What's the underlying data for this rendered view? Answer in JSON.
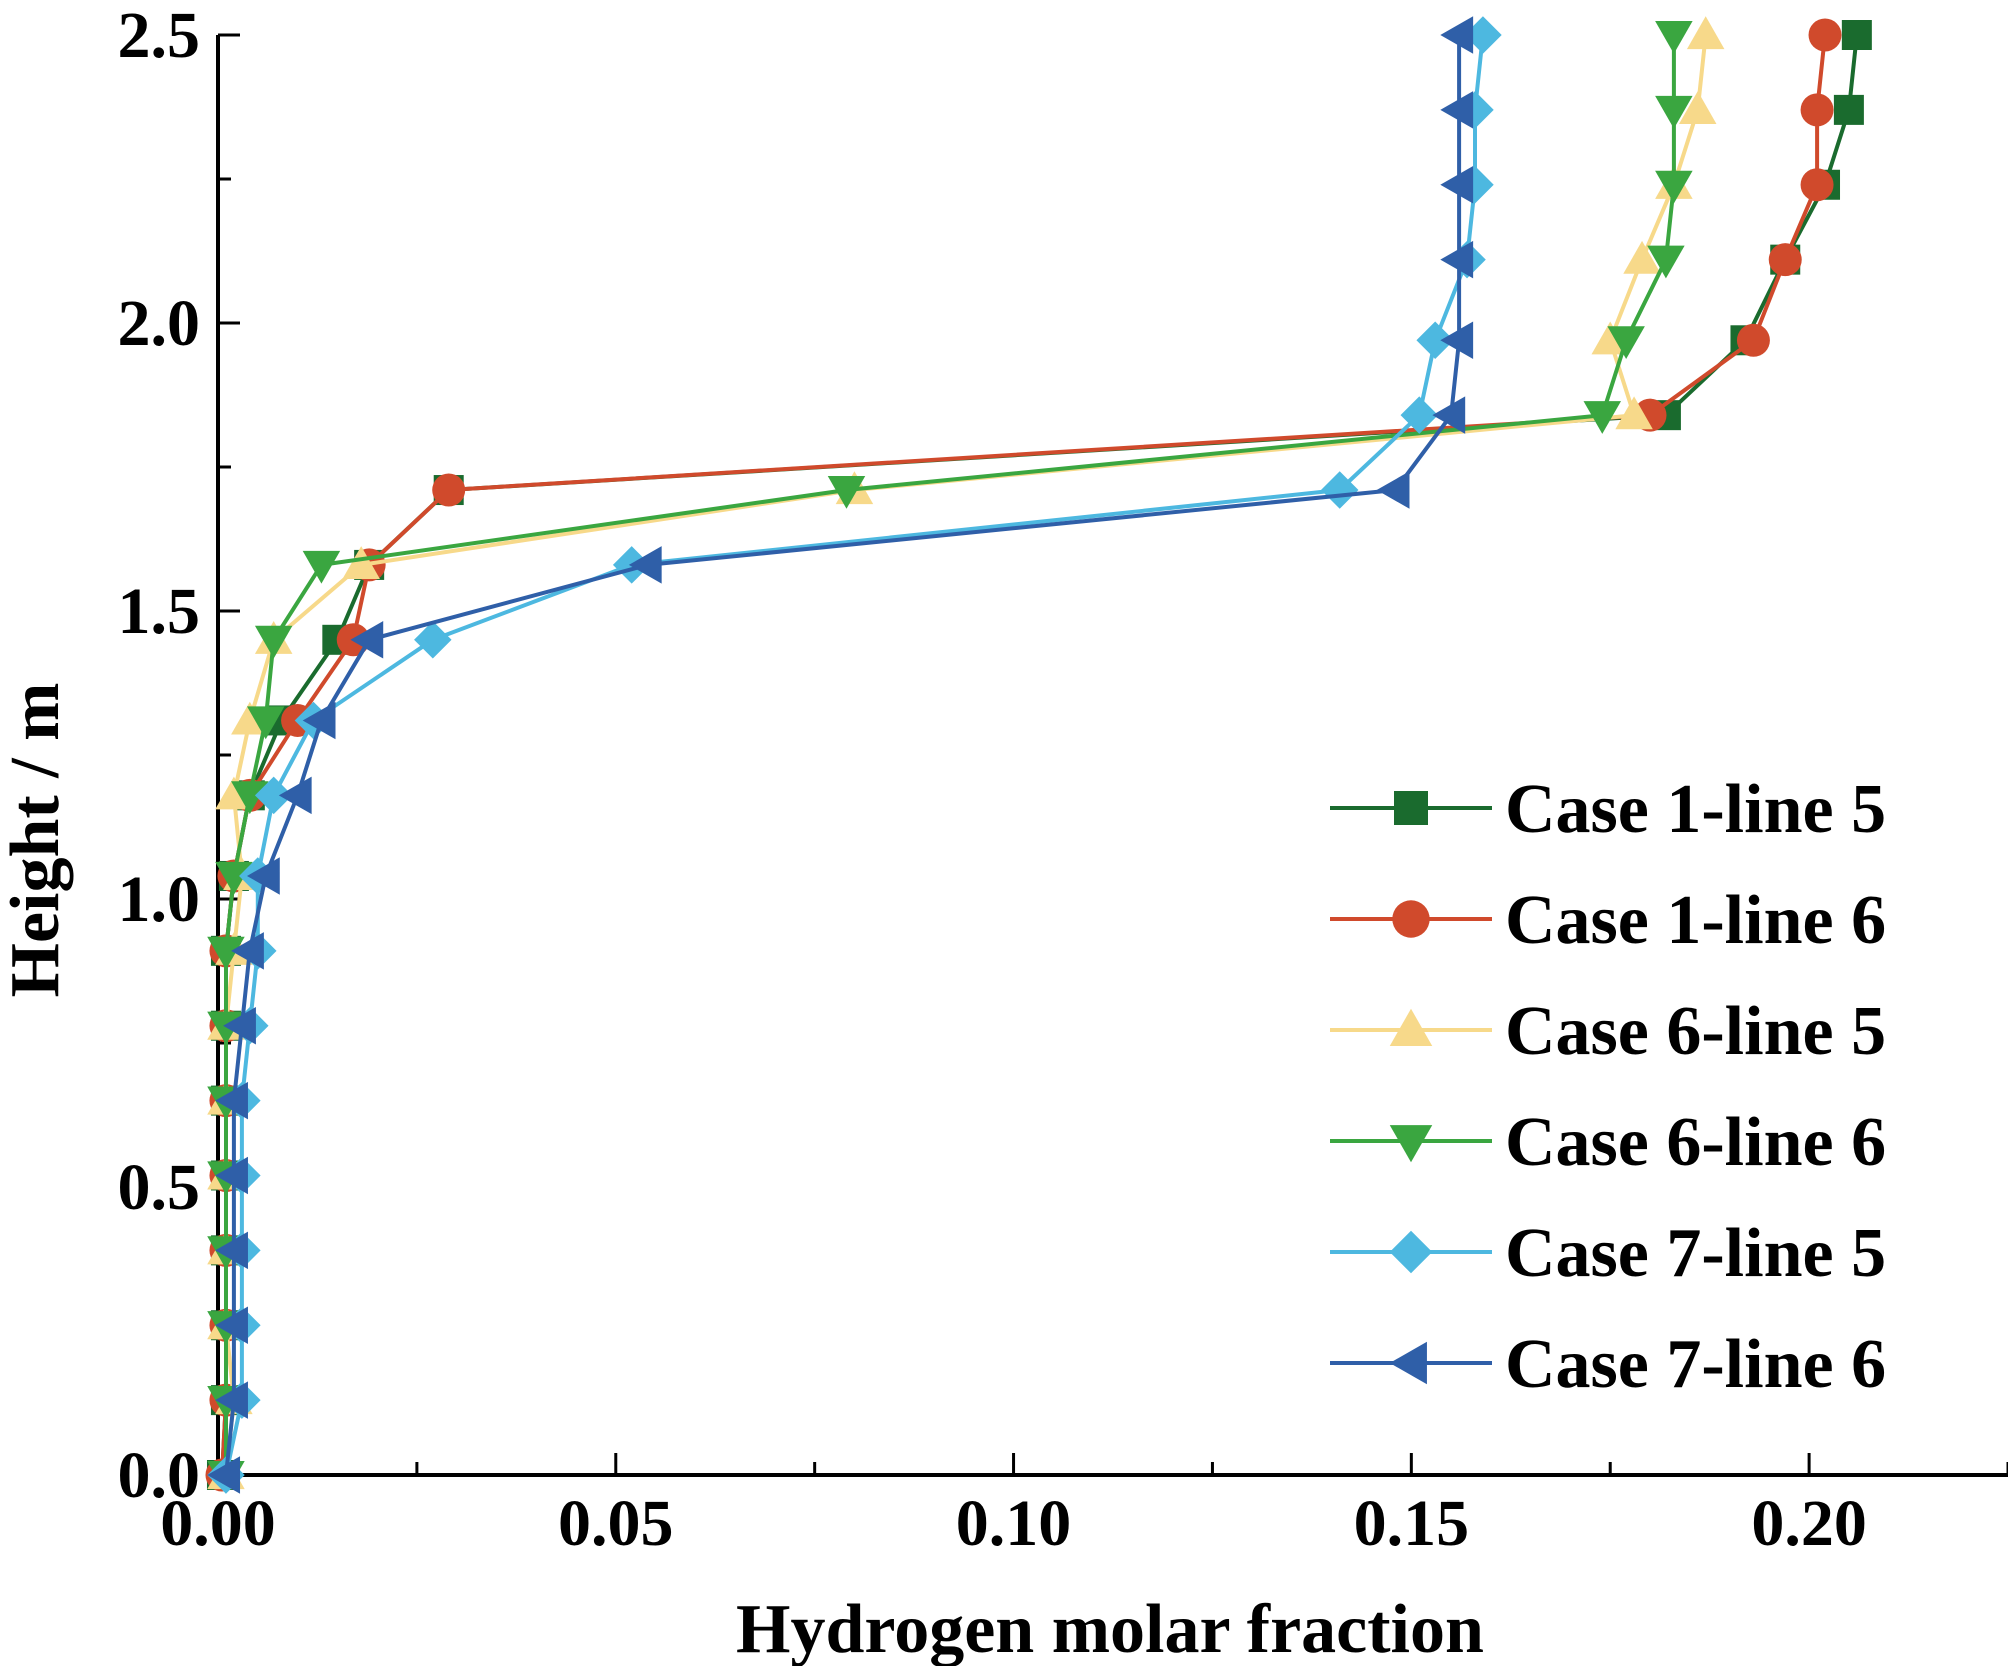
{
  "chart_data": {
    "type": "line",
    "xlabel": "Hydrogen molar fraction",
    "ylabel": "Height / m",
    "xlim": [
      0.0,
      0.225
    ],
    "ylim": [
      0.0,
      2.5
    ],
    "xticks": [
      0.0,
      0.05,
      0.1,
      0.15,
      0.2
    ],
    "xtick_labels": [
      "0.00",
      "0.05",
      "0.10",
      "0.15",
      "0.20"
    ],
    "yticks": [
      0.0,
      0.5,
      1.0,
      1.5,
      2.0,
      2.5
    ],
    "ytick_labels": [
      "0.0",
      "0.5",
      "1.0",
      "1.5",
      "2.0",
      "2.5"
    ],
    "grid": false,
    "legend_position": "bottom-right",
    "series": [
      {
        "name": "Case 1-line 5",
        "color": "#1a6b2e",
        "marker": "square",
        "points": [
          [
            0.0005,
            0.0
          ],
          [
            0.001,
            0.13
          ],
          [
            0.001,
            0.26
          ],
          [
            0.001,
            0.39
          ],
          [
            0.001,
            0.52
          ],
          [
            0.001,
            0.65
          ],
          [
            0.001,
            0.78
          ],
          [
            0.001,
            0.91
          ],
          [
            0.002,
            1.04
          ],
          [
            0.004,
            1.18
          ],
          [
            0.008,
            1.31
          ],
          [
            0.015,
            1.45
          ],
          [
            0.019,
            1.58
          ],
          [
            0.029,
            1.71
          ],
          [
            0.182,
            1.84
          ],
          [
            0.192,
            1.97
          ],
          [
            0.197,
            2.11
          ],
          [
            0.202,
            2.24
          ],
          [
            0.205,
            2.37
          ],
          [
            0.206,
            2.5
          ]
        ]
      },
      {
        "name": "Case 1-line 6",
        "color": "#d04a2c",
        "marker": "circle",
        "points": [
          [
            0.0005,
            0.0
          ],
          [
            0.001,
            0.13
          ],
          [
            0.001,
            0.26
          ],
          [
            0.001,
            0.39
          ],
          [
            0.001,
            0.52
          ],
          [
            0.001,
            0.65
          ],
          [
            0.001,
            0.78
          ],
          [
            0.001,
            0.91
          ],
          [
            0.002,
            1.04
          ],
          [
            0.004,
            1.18
          ],
          [
            0.01,
            1.31
          ],
          [
            0.017,
            1.45
          ],
          [
            0.019,
            1.58
          ],
          [
            0.029,
            1.71
          ],
          [
            0.18,
            1.84
          ],
          [
            0.193,
            1.97
          ],
          [
            0.197,
            2.11
          ],
          [
            0.201,
            2.24
          ],
          [
            0.201,
            2.37
          ],
          [
            0.202,
            2.5
          ]
        ]
      },
      {
        "name": "Case 6-line 5",
        "color": "#f7d98a",
        "marker": "triangle-up",
        "points": [
          [
            0.001,
            0.0
          ],
          [
            0.002,
            0.13
          ],
          [
            0.001,
            0.26
          ],
          [
            0.001,
            0.39
          ],
          [
            0.001,
            0.52
          ],
          [
            0.001,
            0.65
          ],
          [
            0.001,
            0.78
          ],
          [
            0.002,
            0.91
          ],
          [
            0.003,
            1.04
          ],
          [
            0.002,
            1.18
          ],
          [
            0.004,
            1.31
          ],
          [
            0.007,
            1.45
          ],
          [
            0.018,
            1.58
          ],
          [
            0.08,
            1.71
          ],
          [
            0.178,
            1.84
          ],
          [
            0.175,
            1.97
          ],
          [
            0.179,
            2.11
          ],
          [
            0.183,
            2.24
          ],
          [
            0.186,
            2.37
          ],
          [
            0.187,
            2.5
          ]
        ]
      },
      {
        "name": "Case 6-line 6",
        "color": "#3aa640",
        "marker": "triangle-down",
        "points": [
          [
            0.001,
            0.0
          ],
          [
            0.001,
            0.13
          ],
          [
            0.001,
            0.26
          ],
          [
            0.001,
            0.39
          ],
          [
            0.001,
            0.52
          ],
          [
            0.001,
            0.65
          ],
          [
            0.001,
            0.78
          ],
          [
            0.001,
            0.91
          ],
          [
            0.002,
            1.04
          ],
          [
            0.004,
            1.18
          ],
          [
            0.006,
            1.31
          ],
          [
            0.007,
            1.45
          ],
          [
            0.013,
            1.58
          ],
          [
            0.079,
            1.71
          ],
          [
            0.174,
            1.84
          ],
          [
            0.177,
            1.97
          ],
          [
            0.182,
            2.11
          ],
          [
            0.183,
            2.24
          ],
          [
            0.183,
            2.37
          ],
          [
            0.183,
            2.5
          ]
        ]
      },
      {
        "name": "Case 7-line 5",
        "color": "#4db8e0",
        "marker": "diamond",
        "points": [
          [
            0.001,
            0.0
          ],
          [
            0.003,
            0.13
          ],
          [
            0.003,
            0.26
          ],
          [
            0.003,
            0.39
          ],
          [
            0.003,
            0.52
          ],
          [
            0.003,
            0.65
          ],
          [
            0.004,
            0.78
          ],
          [
            0.005,
            0.91
          ],
          [
            0.005,
            1.04
          ],
          [
            0.007,
            1.18
          ],
          [
            0.012,
            1.31
          ],
          [
            0.027,
            1.45
          ],
          [
            0.052,
            1.58
          ],
          [
            0.141,
            1.71
          ],
          [
            0.151,
            1.84
          ],
          [
            0.153,
            1.97
          ],
          [
            0.157,
            2.11
          ],
          [
            0.158,
            2.24
          ],
          [
            0.158,
            2.37
          ],
          [
            0.159,
            2.5
          ]
        ]
      },
      {
        "name": "Case 7-line 6",
        "color": "#2f5fa8",
        "marker": "triangle-left",
        "points": [
          [
            0.001,
            0.0
          ],
          [
            0.002,
            0.13
          ],
          [
            0.002,
            0.26
          ],
          [
            0.002,
            0.39
          ],
          [
            0.002,
            0.52
          ],
          [
            0.002,
            0.65
          ],
          [
            0.003,
            0.78
          ],
          [
            0.004,
            0.91
          ],
          [
            0.006,
            1.04
          ],
          [
            0.01,
            1.18
          ],
          [
            0.013,
            1.31
          ],
          [
            0.019,
            1.45
          ],
          [
            0.054,
            1.58
          ],
          [
            0.148,
            1.71
          ],
          [
            0.155,
            1.84
          ],
          [
            0.156,
            1.97
          ],
          [
            0.156,
            2.11
          ],
          [
            0.156,
            2.24
          ],
          [
            0.156,
            2.37
          ],
          [
            0.156,
            2.5
          ]
        ]
      }
    ]
  }
}
